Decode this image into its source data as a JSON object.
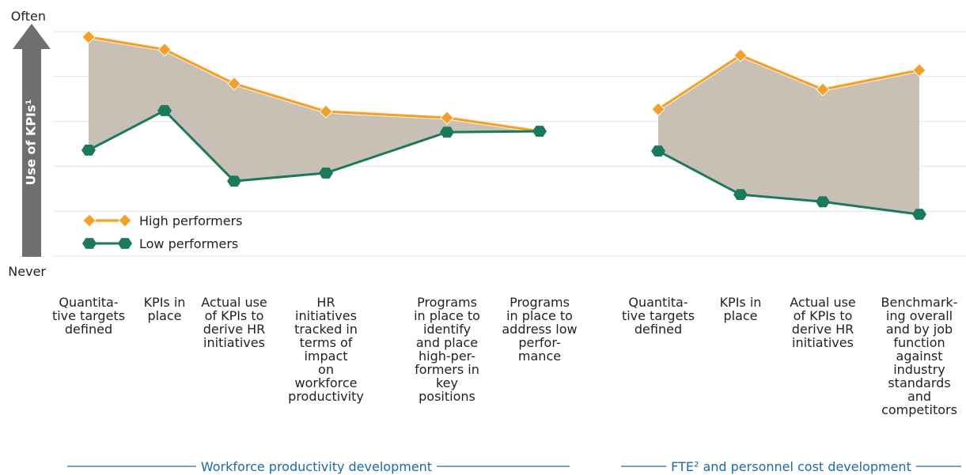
{
  "chart_data": [
    {
      "type": "line",
      "ylabel": "Use of KPIs¹",
      "xlabel": "Workforce productivity development",
      "ylim": [
        0,
        5
      ],
      "yticks": [
        {
          "value": 0,
          "label": "Never"
        },
        {
          "value": 5,
          "label": "Often"
        }
      ],
      "grid": true,
      "legend": "lower-left",
      "categories": [
        "Quantita-\ntive targets\ndefined",
        "KPIs in\nplace",
        "Actual use\nof KPIs to\nderive HR\ninitiatives",
        "HR\ninitiatives\ntracked in\nterms of\nimpact\non\nworkforce\nproductivity",
        "Programs\nin place to\nidentify\nand place\nhigh-per-\nformers in\nkey\npositions",
        "Programs\nin place to\naddress low\nperfor-\nmance"
      ],
      "series": [
        {
          "name": "High performers",
          "color": "#f0a02c",
          "values": [
            4.88,
            4.6,
            3.84,
            3.22,
            3.08,
            2.78
          ]
        },
        {
          "name": "Low performers",
          "color": "#1c7a5c",
          "values": [
            2.36,
            3.24,
            1.67,
            1.85,
            2.76,
            2.78
          ]
        }
      ]
    },
    {
      "type": "line",
      "xlabel": "FTE² and personnel cost development",
      "ylim": [
        0,
        5
      ],
      "categories": [
        "Quantita-\ntive targets\ndefined",
        "KPIs in\nplace",
        "Actual use\nof KPIs to\nderive HR\ninitiatives",
        "Benchmark-\ning overall\nand by job\nfunction\nagainst\nindustry\nstandards\nand\ncompetitors"
      ],
      "series": [
        {
          "color": "#f0a02c",
          "values": [
            3.27,
            4.47,
            3.71,
            4.14
          ]
        },
        {
          "color": "#1c7a5c",
          "values": [
            2.34,
            1.37,
            1.21,
            0.93
          ]
        }
      ]
    }
  ]
}
